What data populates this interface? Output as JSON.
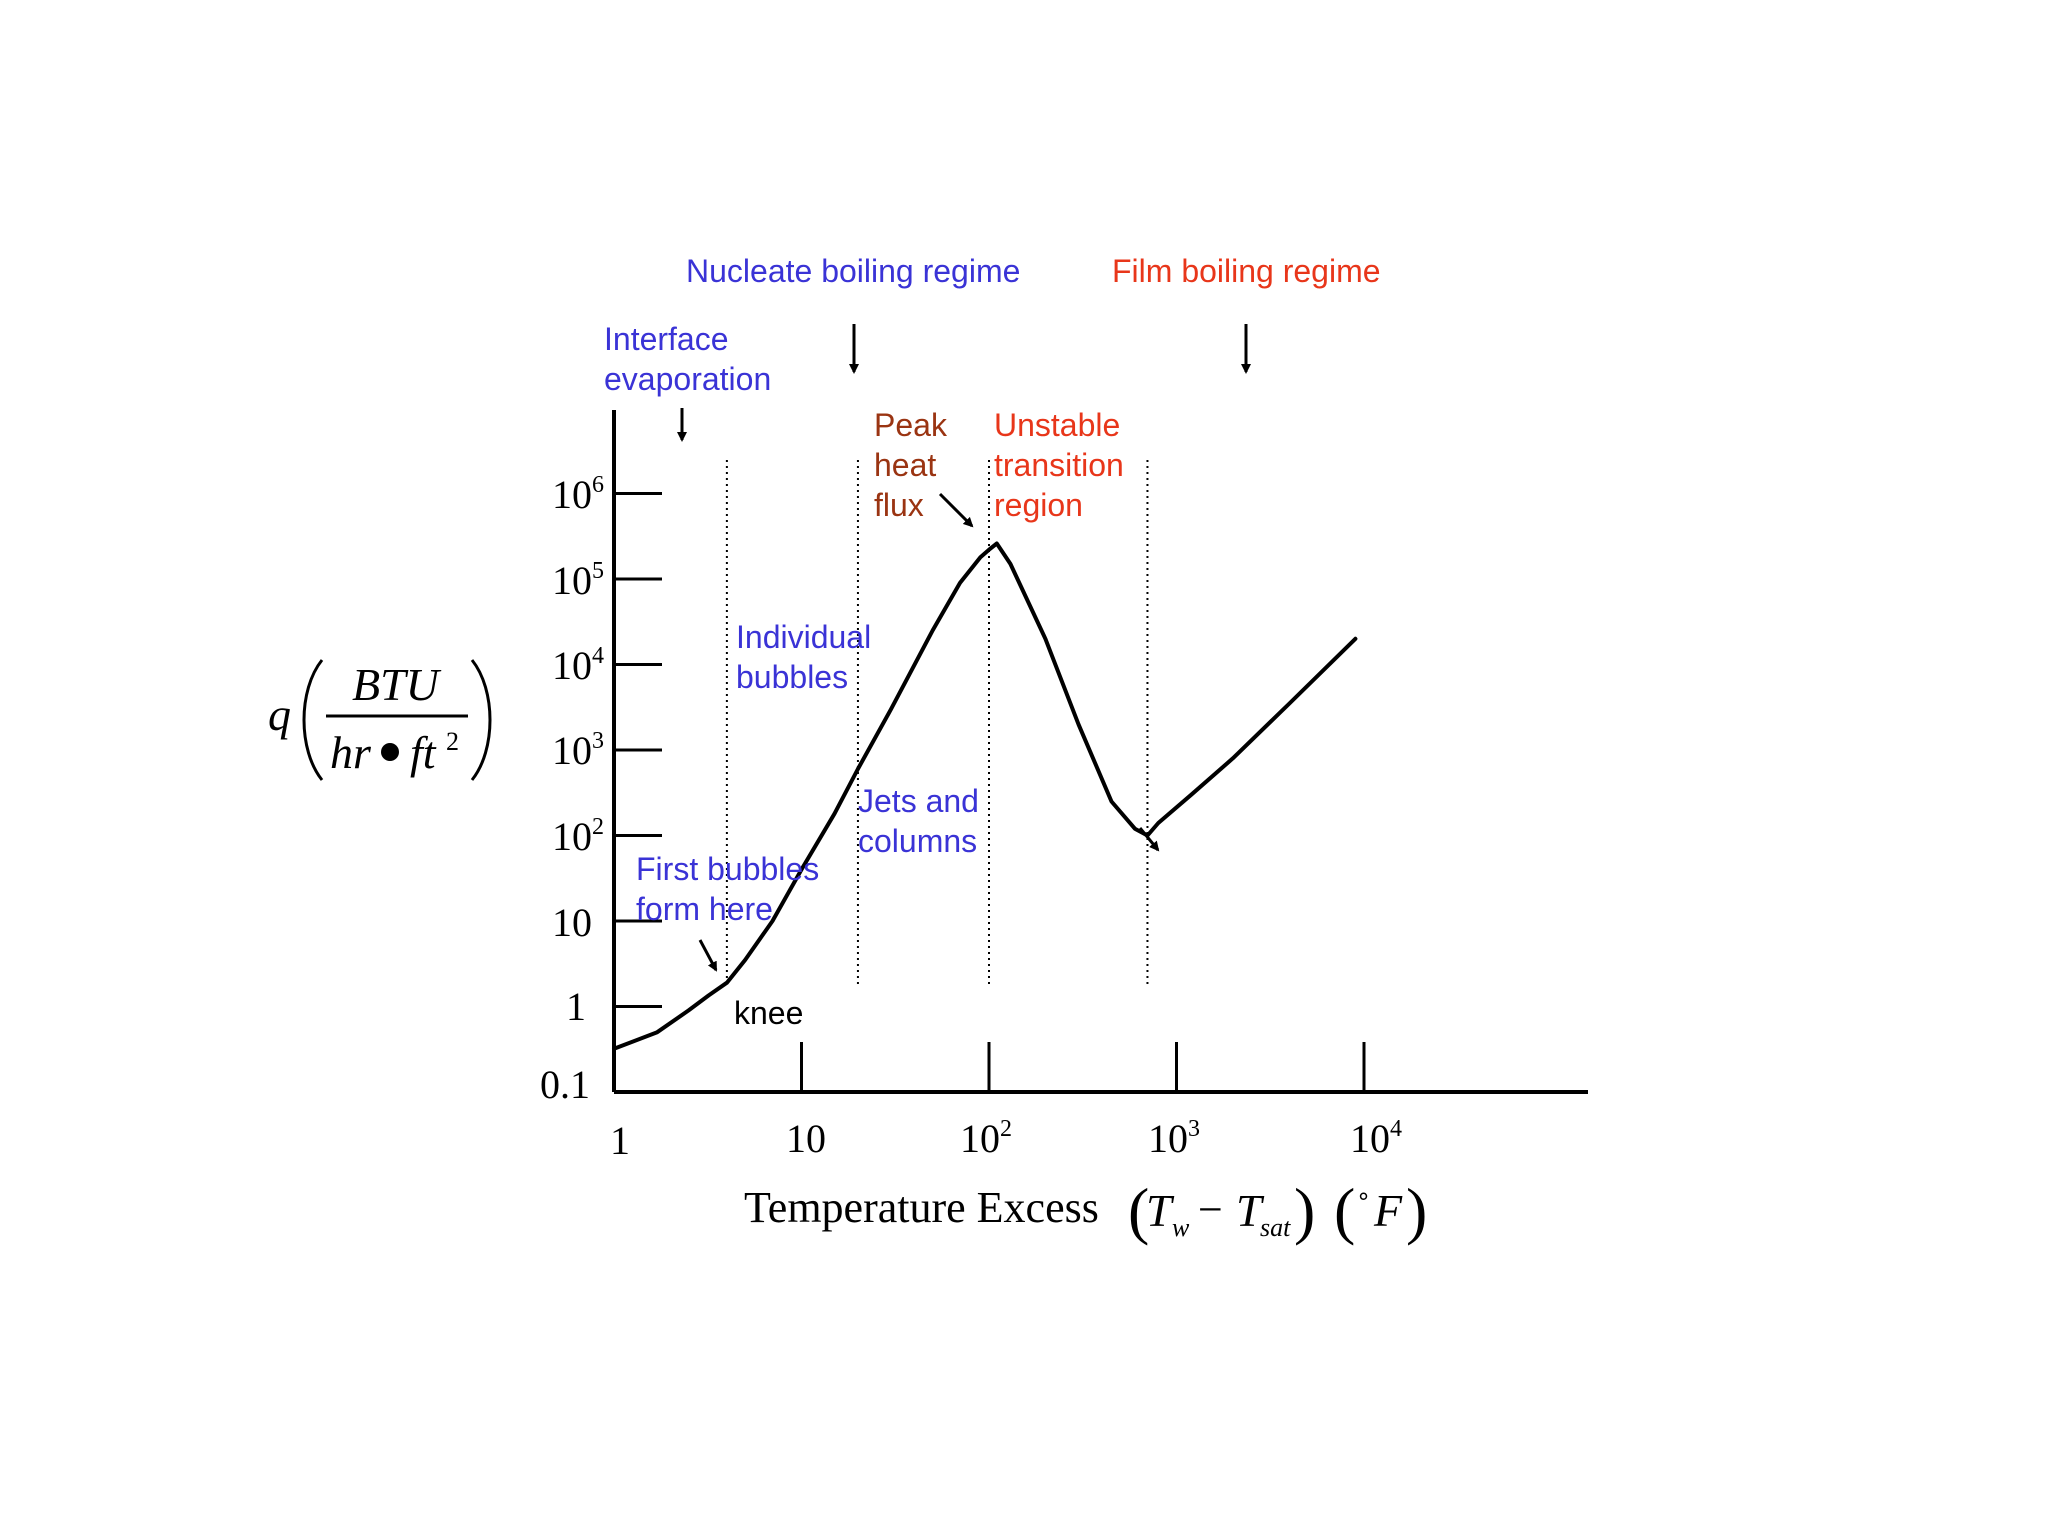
{
  "colors": {
    "blue": "#3a33d6",
    "red": "#e8361a",
    "brown": "#9a3412",
    "black": "#000000"
  },
  "chart_data": {
    "type": "line",
    "title": "",
    "xscale": "log",
    "yscale": "log",
    "xlim": [
      1,
      100000
    ],
    "ylim": [
      0.1,
      10000000
    ],
    "grid": false,
    "legend": "none",
    "x_ticks": [
      1,
      10,
      100,
      1000,
      10000
    ],
    "y_ticks": [
      0.1,
      1,
      10,
      100,
      1000,
      10000,
      100000,
      1000000
    ],
    "x_tick_labels": [
      "1",
      "10",
      "10^2",
      "10^3",
      "10^4"
    ],
    "y_tick_labels": [
      "0.1",
      "1",
      "10",
      "10^2",
      "10^3",
      "10^4",
      "10^5",
      "10^6"
    ],
    "xlabel": "Temperature Excess (T_w − T_sat) (°F)",
    "ylabel": "q (BTU / hr • ft^2)",
    "boundaries_x": [
      4,
      20,
      100,
      700
    ],
    "series": [
      {
        "x": [
          1,
          1.7,
          2.5,
          3.2,
          4,
          5,
          7,
          10,
          15,
          20,
          30,
          50,
          70,
          90,
          100,
          110,
          130,
          200,
          300,
          450,
          600,
          700,
          800,
          1200,
          2000,
          4000,
          9000
        ],
        "y": [
          0.32,
          0.5,
          0.9,
          1.35,
          1.9,
          3.5,
          10,
          40,
          180,
          600,
          3000,
          25000,
          90000,
          180000,
          220000,
          260000,
          150000,
          20000,
          2000,
          250,
          120,
          100,
          140,
          300,
          800,
          3500,
          20000
        ]
      }
    ],
    "annotations": {
      "nucleate_regime": "Nucleate boiling regime",
      "film_regime": "Film boiling regime",
      "interface": [
        "Interface",
        "evaporation"
      ],
      "peak": [
        "Peak",
        "heat",
        "flux"
      ],
      "unstable": [
        "Unstable",
        "transition",
        "region"
      ],
      "individual": [
        "Individual",
        "bubbles"
      ],
      "jets": [
        "Jets and",
        "columns"
      ],
      "first": [
        "First bubbles",
        "form here"
      ],
      "knee": "knee"
    }
  }
}
